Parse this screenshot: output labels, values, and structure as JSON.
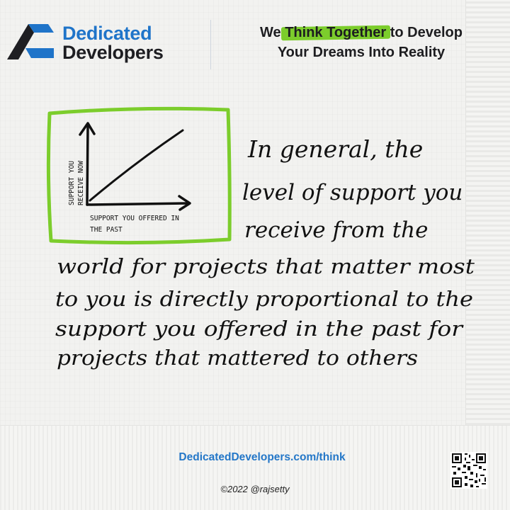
{
  "brand": {
    "name_line1": "Dedicated",
    "name_line2": "Developers",
    "colors": {
      "blue": "#1f74c9",
      "dark": "#1e1e22",
      "accent_green": "#7ccd2c"
    }
  },
  "tagline": {
    "prefix": "We ",
    "highlight": "Think Together",
    "suffix": " to Develop",
    "line2": "Your Dreams Into Reality"
  },
  "sketch": {
    "y_axis_label_line1": "SUPPORT YOU",
    "y_axis_label_line2": "RECEIVE NOW",
    "x_axis_label_line1": "SUPPORT YOU OFFERED IN",
    "x_axis_label_line2": "THE PAST",
    "frame_color": "#7ccd2c"
  },
  "note": {
    "lines": [
      "In general, the",
      "level of support you",
      "receive from the",
      "world for projects that matter most",
      "to you is directly proportional to the",
      "support you offered in the past for",
      "projects that mattered to others"
    ]
  },
  "footer": {
    "url": "DedicatedDevelopers.com/think",
    "copyright": "©2022 @rajsetty",
    "qr_icon": "qr-code-icon"
  }
}
